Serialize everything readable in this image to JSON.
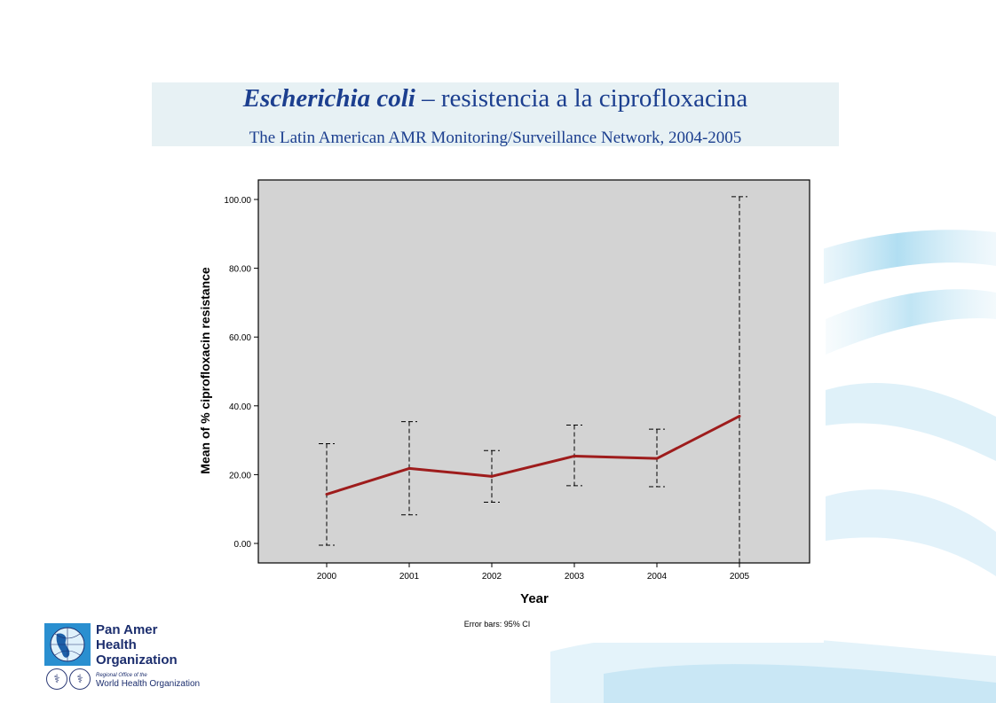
{
  "header": {
    "title_italic": "Escherichia coli",
    "title_rest": " – resistencia a la ciprofloxacina",
    "subtitle": "The Latin American AMR Monitoring/Surveillance Network, 2004-2005"
  },
  "chart_data": {
    "type": "line",
    "title": "",
    "xlabel": "Year",
    "ylabel": "Mean of % ciprofloxacin resistance",
    "note": "Error bars: 95% CI",
    "categories": [
      "2000",
      "2001",
      "2002",
      "2003",
      "2004",
      "2005"
    ],
    "series": [
      {
        "values": [
          14.3,
          21.8,
          19.5,
          25.4,
          24.7,
          37.0
        ],
        "ci_lower": [
          -0.5,
          8.3,
          12.0,
          16.8,
          16.5,
          null
        ],
        "ci_upper": [
          29.0,
          35.4,
          27.0,
          34.4,
          33.2,
          100.8
        ]
      }
    ],
    "ylim": [
      -5,
      105
    ],
    "yticks": [
      "0.00",
      "20.00",
      "40.00",
      "60.00",
      "80.00",
      "100.00"
    ],
    "line_color": "#9e1c1c",
    "plot_background": "#d3d3d3",
    "grid": false
  },
  "logo": {
    "org_line1": "Pan Amer",
    "org_line2": "Health",
    "org_line3": "Organization",
    "regional_office": "Regional Office of the",
    "who_name": "World Health Organization"
  },
  "colors": {
    "title": "#1c3f8f",
    "title_box": "#e7f1f4",
    "logo_text": "#1c2e6e"
  },
  "icons": [
    "globe-logo-icon",
    "paho-emblem-icon",
    "who-emblem-icon"
  ]
}
